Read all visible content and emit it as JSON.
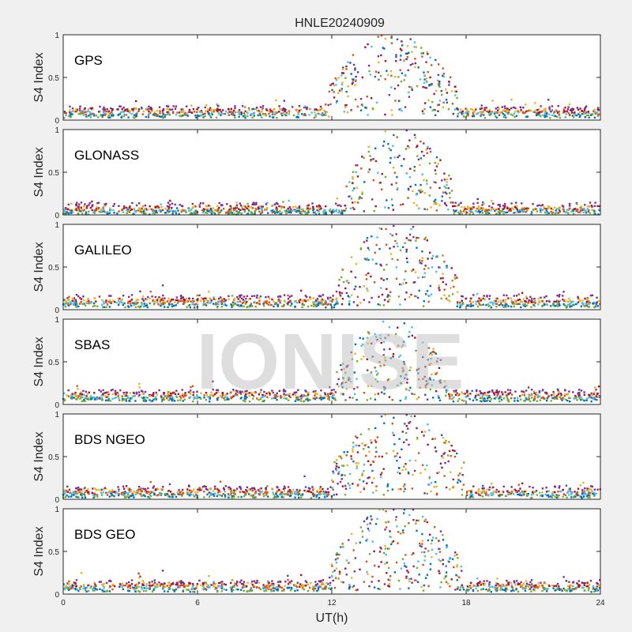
{
  "figure": {
    "title": "HNLE20240909",
    "xlabel": "UT(h)",
    "watermark": "IONISE",
    "background": "#f0f0f0"
  },
  "chart_data": [
    {
      "type": "scatter",
      "panel": "GPS",
      "ylabel": "S4 Index",
      "xlim": [
        0,
        24
      ],
      "ylim": [
        0,
        1
      ],
      "xticks": [
        "0",
        "6",
        "12",
        "18",
        "24"
      ],
      "yticks": [
        "0",
        "0.5",
        "1"
      ],
      "grid": false,
      "active_window_h": [
        11.8,
        17.6
      ],
      "active_peak": 1.0,
      "quiet_level": 0.07,
      "base_levels": [
        0.05,
        0.08,
        0.11,
        0.14
      ]
    },
    {
      "type": "scatter",
      "panel": "GLONASS",
      "ylabel": "S4 Index",
      "xlim": [
        0,
        24
      ],
      "ylim": [
        0,
        1
      ],
      "xticks": [
        "0",
        "6",
        "12",
        "18",
        "24"
      ],
      "yticks": [
        "0",
        "0.5",
        "1"
      ],
      "grid": false,
      "active_window_h": [
        12.6,
        17.4
      ],
      "active_peak": 0.98,
      "quiet_level": 0.05,
      "base_levels": [
        0.03,
        0.05,
        0.08,
        0.12
      ]
    },
    {
      "type": "scatter",
      "panel": "GALILEO",
      "ylabel": "S4 Index",
      "xlim": [
        0,
        24
      ],
      "ylim": [
        0,
        1
      ],
      "xticks": [
        "0",
        "6",
        "12",
        "18",
        "24"
      ],
      "yticks": [
        "0",
        "0.5",
        "1"
      ],
      "grid": false,
      "active_window_h": [
        12.3,
        17.6
      ],
      "active_peak": 0.98,
      "quiet_level": 0.07,
      "base_levels": [
        0.05,
        0.08,
        0.11,
        0.15
      ]
    },
    {
      "type": "scatter",
      "panel": "SBAS",
      "ylabel": "S4 Index",
      "xlim": [
        0,
        24
      ],
      "ylim": [
        0,
        1
      ],
      "xticks": [
        "0",
        "6",
        "12",
        "18",
        "24"
      ],
      "yticks": [
        "0",
        "0.5",
        "1"
      ],
      "grid": false,
      "active_window_h": [
        12.2,
        17.2
      ],
      "active_peak": 0.95,
      "quiet_level": 0.1,
      "base_levels": [
        0.06,
        0.09,
        0.12,
        0.15
      ]
    },
    {
      "type": "scatter",
      "panel": "BDS NGEO",
      "ylabel": "S4 Index",
      "xlim": [
        0,
        24
      ],
      "ylim": [
        0,
        1
      ],
      "xticks": [
        "0",
        "6",
        "12",
        "18",
        "24"
      ],
      "yticks": [
        "0",
        "0.5",
        "1"
      ],
      "grid": false,
      "active_window_h": [
        12.0,
        18.0
      ],
      "active_peak": 1.0,
      "quiet_level": 0.07,
      "base_levels": [
        0.04,
        0.07,
        0.1,
        0.13
      ]
    },
    {
      "type": "scatter",
      "panel": "BDS GEO",
      "ylabel": "S4 Index",
      "xlim": [
        0,
        24
      ],
      "ylim": [
        0,
        1
      ],
      "xticks": [
        "0",
        "6",
        "12",
        "18",
        "24"
      ],
      "yticks": [
        "0",
        "0.5",
        "1"
      ],
      "grid": false,
      "active_window_h": [
        12.0,
        17.8
      ],
      "active_peak": 1.0,
      "quiet_level": 0.1,
      "base_levels": [
        0.05,
        0.08,
        0.11,
        0.14
      ]
    }
  ],
  "series_colors": [
    "#0072BD",
    "#D95319",
    "#EDB120",
    "#7E2F8E",
    "#77AC30",
    "#4DBEEE",
    "#A2142F"
  ]
}
